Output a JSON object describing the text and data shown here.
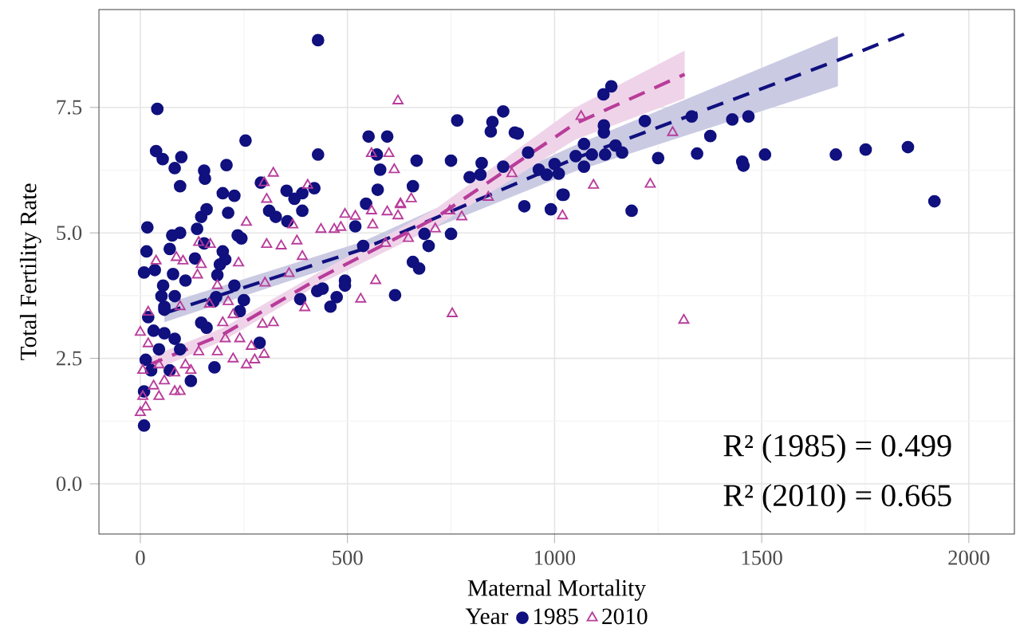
{
  "chart_data": {
    "type": "scatter",
    "xlabel": "Maternal Mortality",
    "ylabel": "Total Fertility Rate",
    "legend_title": "Year",
    "legend": "bottom",
    "grid": true,
    "xlim": [
      -100,
      2110
    ],
    "ylim": [
      -1,
      9.45
    ],
    "xticks": [
      0,
      500,
      1000,
      1500,
      2000
    ],
    "yticks": [
      {
        "value": 0,
        "label": "0.0"
      },
      2.5,
      {
        "value": 5,
        "label": "5.0"
      },
      7.5
    ],
    "annotations": [
      "R² (1985) = 0.499",
      "R² (2010) = 0.665"
    ],
    "series": [
      {
        "name": "1985",
        "marker": "circle",
        "color": "#10107f",
        "x": [
          429,
          41,
          38,
          54,
          99,
          83,
          96,
          154,
          156,
          208,
          254,
          429,
          17,
          15,
          9,
          35,
          71,
          77,
          96,
          137,
          147,
          160,
          132,
          154,
          199,
          227,
          212,
          235,
          244,
          199,
          192,
          186,
          205,
          227,
          79,
          55,
          51,
          58,
          83,
          109,
          183,
          176,
          250,
          240,
          147,
          160,
          179,
          288,
          291,
          311,
          327,
          353,
          372,
          391,
          420,
          391,
          355,
          386,
          427,
          440,
          459,
          474,
          494,
          494,
          519,
          538,
          545,
          551,
          571,
          596,
          579,
          573,
          658,
          667,
          615,
          696,
          686,
          658,
          673,
          750,
          750,
          765,
          795,
          821,
          824,
          846,
          850,
          876,
          876,
          904,
          911,
          927,
          936,
          962,
          991,
          1019,
          1000,
          981,
          19,
          32,
          58,
          83,
          96,
          45,
          13,
          26,
          9,
          9,
          71,
          122,
          58,
          1118,
          1137,
          1119,
          1119,
          1218,
          1331,
          1429,
          1468,
          1376,
          1250,
          1344,
          1453,
          1456,
          1508,
          1679,
          1751,
          1853,
          1917,
          1186,
          1022,
          1071,
          1051,
          1071,
          1090,
          1122,
          1147,
          1163,
          1010
        ],
        "values": [
          8.84,
          7.47,
          6.63,
          6.47,
          6.51,
          6.29,
          5.93,
          6.24,
          6.08,
          6.35,
          6.84,
          6.56,
          5.11,
          4.63,
          4.21,
          4.26,
          4.68,
          4.95,
          5.0,
          5.08,
          5.32,
          5.47,
          4.49,
          4.79,
          5.79,
          5.74,
          5.4,
          4.95,
          4.89,
          4.63,
          4.37,
          4.16,
          4.47,
          3.95,
          4.18,
          3.95,
          3.74,
          3.53,
          3.74,
          4.05,
          3.72,
          3.63,
          3.66,
          3.44,
          3.21,
          3.11,
          2.32,
          2.81,
          6.0,
          5.44,
          5.32,
          5.84,
          5.68,
          5.79,
          5.89,
          5.44,
          5.23,
          3.68,
          3.84,
          3.89,
          3.53,
          3.72,
          4.05,
          3.95,
          5.13,
          4.74,
          5.58,
          6.92,
          6.56,
          6.92,
          6.26,
          5.86,
          5.93,
          6.44,
          3.76,
          4.74,
          4.98,
          4.42,
          4.29,
          6.44,
          4.98,
          7.24,
          6.11,
          6.16,
          6.39,
          7.02,
          7.21,
          7.42,
          6.32,
          7.0,
          6.98,
          5.53,
          6.6,
          6.26,
          5.47,
          5.76,
          6.37,
          6.16,
          3.32,
          3.05,
          3.0,
          2.89,
          2.68,
          2.68,
          2.47,
          2.26,
          1.84,
          1.16,
          2.26,
          2.05,
          3.47,
          7.76,
          7.92,
          7.14,
          7.0,
          7.23,
          7.32,
          7.26,
          7.32,
          6.93,
          6.49,
          6.58,
          6.42,
          6.34,
          6.56,
          6.56,
          6.66,
          6.71,
          5.63,
          5.44,
          5.76,
          6.77,
          6.53,
          6.32,
          6.56,
          6.56,
          6.74,
          6.6,
          6.18
        ]
      },
      {
        "name": "2010",
        "marker": "triangle",
        "color": "#b83c9a",
        "x": [
          622,
          321,
          299,
          404,
          305,
          256,
          558,
          600,
          613,
          654,
          628,
          558,
          596,
          622,
          628,
          494,
          484,
          468,
          436,
          519,
          561,
          592,
          647,
          712,
          776,
          747,
          840,
          897,
          1019,
          753,
          568,
          532,
          397,
          391,
          378,
          368,
          305,
          340,
          359,
          237,
          141,
          169,
          38,
          87,
          103,
          147,
          138,
          186,
          301,
          295,
          321,
          212,
          224,
          199,
          167,
          96,
          19,
          0,
          205,
          240,
          268,
          299,
          224,
          256,
          276,
          186,
          141,
          109,
          83,
          58,
          32,
          6,
          0,
          13,
          45,
          83,
          19,
          6,
          45,
          96,
          122,
          1064,
          1285,
          1094,
          1231,
          1312
        ],
        "values": [
          7.63,
          6.19,
          6.0,
          5.95,
          5.67,
          5.21,
          6.58,
          6.58,
          6.26,
          5.68,
          5.56,
          5.44,
          5.42,
          5.34,
          5.58,
          5.37,
          5.11,
          5.07,
          5.07,
          5.33,
          5.16,
          4.79,
          4.89,
          5.08,
          5.32,
          5.44,
          5.71,
          6.18,
          5.34,
          3.39,
          4.05,
          3.68,
          3.51,
          4.53,
          4.84,
          5.16,
          4.77,
          4.74,
          4.19,
          4.4,
          4.81,
          4.77,
          4.44,
          4.51,
          4.44,
          4.37,
          4.16,
          3.95,
          4.0,
          3.18,
          3.21,
          3.63,
          3.37,
          3.21,
          3.58,
          3.53,
          3.42,
          3.02,
          2.89,
          2.89,
          2.74,
          2.58,
          2.49,
          2.37,
          2.47,
          2.63,
          2.63,
          2.37,
          2.21,
          2.05,
          1.95,
          1.74,
          1.42,
          1.53,
          1.74,
          1.84,
          2.79,
          2.26,
          2.37,
          1.84,
          2.26,
          7.32,
          7.0,
          5.95,
          5.97,
          3.26
        ]
      },
      {
        "type": "line",
        "line_style": "dashed",
        "color": "#10107f",
        "x": [
          58,
          535,
          1048,
          1684,
          1850
        ],
        "values": [
          3.4,
          4.67,
          6.48,
          8.44,
          8.98
        ],
        "lower": [
          3.22,
          4.52,
          6.22,
          7.92,
          null
        ],
        "upper": [
          3.58,
          4.82,
          6.74,
          8.92,
          null
        ]
      },
      {
        "type": "line",
        "line_style": "dashed",
        "color": "#b83c9a",
        "x": [
          15,
          200,
          432,
          713,
          1048,
          1314
        ],
        "values": [
          2.35,
          2.98,
          4.1,
          5.3,
          7.17,
          8.16
        ],
        "lower": [
          2.2,
          2.85,
          3.98,
          5.12,
          6.85,
          7.68
        ],
        "upper": [
          2.5,
          3.11,
          4.22,
          5.48,
          7.49,
          8.63
        ]
      }
    ]
  }
}
